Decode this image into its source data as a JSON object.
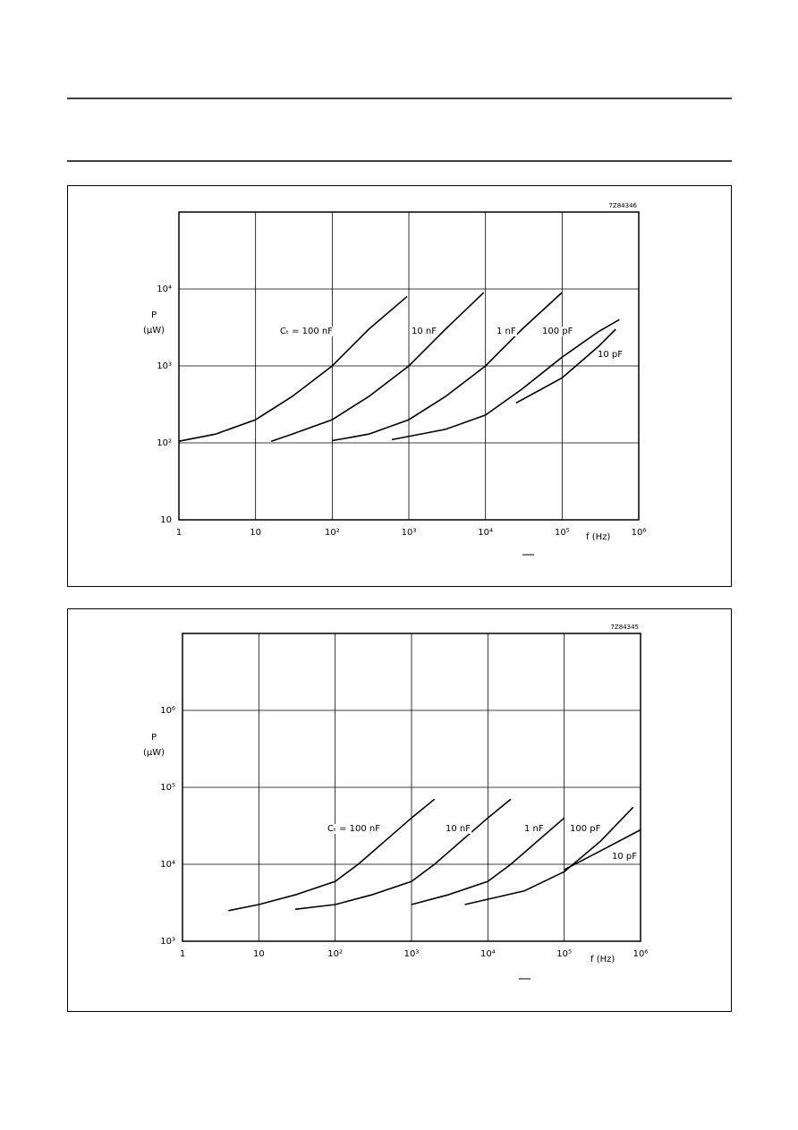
{
  "chart_data": [
    {
      "type": "line",
      "code": "7Z84346",
      "y_label": "P",
      "y_label_unit": "(μW)",
      "x_label": "f (Hz)",
      "xscale": "log",
      "yscale": "log",
      "grid": true,
      "xlim": [
        1,
        1000000
      ],
      "ylim": [
        10,
        100000
      ],
      "xticks": [
        1,
        10,
        {
          "value": 100,
          "label": "10²"
        },
        {
          "value": 1000,
          "label": "10³"
        },
        {
          "value": 10000,
          "label": "10⁴"
        },
        {
          "value": 100000,
          "label": "10⁵"
        },
        {
          "value": 1000000,
          "label": "10⁶"
        }
      ],
      "yticks": [
        10,
        {
          "value": 100,
          "label": "10²"
        },
        {
          "value": 1000,
          "label": "10³"
        },
        {
          "value": 10000,
          "label": "10⁴"
        }
      ],
      "series": [
        {
          "name": "Cₜ = 100 nF",
          "color": "#000000",
          "x": [
            1,
            3,
            10,
            30,
            100,
            300,
            950
          ],
          "values": [
            105,
            130,
            200,
            400,
            1000,
            3000,
            8000
          ]
        },
        {
          "name": "10 nF",
          "color": "#000000",
          "x": [
            16,
            30,
            100,
            300,
            1000,
            3000,
            9500
          ],
          "values": [
            105,
            130,
            200,
            400,
            1000,
            3000,
            9000
          ]
        },
        {
          "name": "1 nF",
          "color": "#000000",
          "x": [
            100,
            300,
            1000,
            3000,
            10000,
            30000,
            100000
          ],
          "values": [
            107,
            130,
            200,
            400,
            1000,
            3000,
            9000
          ]
        },
        {
          "name": "100 pF",
          "color": "#000000",
          "x": [
            600,
            3000,
            10000,
            30000,
            100000,
            300000,
            560000
          ],
          "values": [
            110,
            150,
            230,
            500,
            1300,
            2800,
            4000
          ]
        },
        {
          "name": "10 pF",
          "color": "#000000",
          "x": [
            25000,
            100000,
            300000,
            500000
          ],
          "values": [
            330,
            700,
            1800,
            3000
          ]
        }
      ]
    },
    {
      "type": "line",
      "code": "7Z84345",
      "y_label": "P",
      "y_label_unit": "(μW)",
      "x_label": "f (Hz)",
      "xscale": "log",
      "yscale": "log",
      "grid": true,
      "xlim": [
        1,
        1000000
      ],
      "ylim": [
        1000,
        10000000
      ],
      "xticks": [
        1,
        10,
        {
          "value": 100,
          "label": "10²"
        },
        {
          "value": 1000,
          "label": "10³"
        },
        {
          "value": 10000,
          "label": "10⁴"
        },
        {
          "value": 100000,
          "label": "10⁵"
        },
        {
          "value": 1000000,
          "label": "10⁶"
        }
      ],
      "yticks": [
        {
          "value": 1000,
          "label": "10³"
        },
        {
          "value": 10000,
          "label": "10⁴"
        },
        {
          "value": 100000,
          "label": "10⁵"
        },
        {
          "value": 1000000,
          "label": "10⁶"
        }
      ],
      "series": [
        {
          "name": "Cₜ = 100 nF",
          "color": "#000000",
          "x": [
            4,
            10,
            30,
            100,
            200,
            1000,
            2000
          ],
          "values": [
            2500,
            3000,
            4000,
            6000,
            10000,
            40000,
            70000
          ]
        },
        {
          "name": "10 nF",
          "color": "#000000",
          "x": [
            30,
            100,
            300,
            1000,
            2000,
            10000,
            20000
          ],
          "values": [
            2600,
            3000,
            4000,
            6000,
            10000,
            40000,
            70000
          ]
        },
        {
          "name": "1 nF",
          "color": "#000000",
          "x": [
            1000,
            3000,
            10000,
            20000,
            100000
          ],
          "values": [
            3000,
            4000,
            6000,
            10000,
            40000
          ]
        },
        {
          "name": "100 pF",
          "color": "#000000",
          "x": [
            5000,
            30000,
            100000,
            300000,
            800000
          ],
          "values": [
            3000,
            4500,
            8000,
            20000,
            55000
          ]
        },
        {
          "name": "10 pF",
          "color": "#000000",
          "x": [
            100000,
            300000,
            1000000
          ],
          "values": [
            8500,
            15000,
            28000
          ]
        }
      ]
    }
  ]
}
